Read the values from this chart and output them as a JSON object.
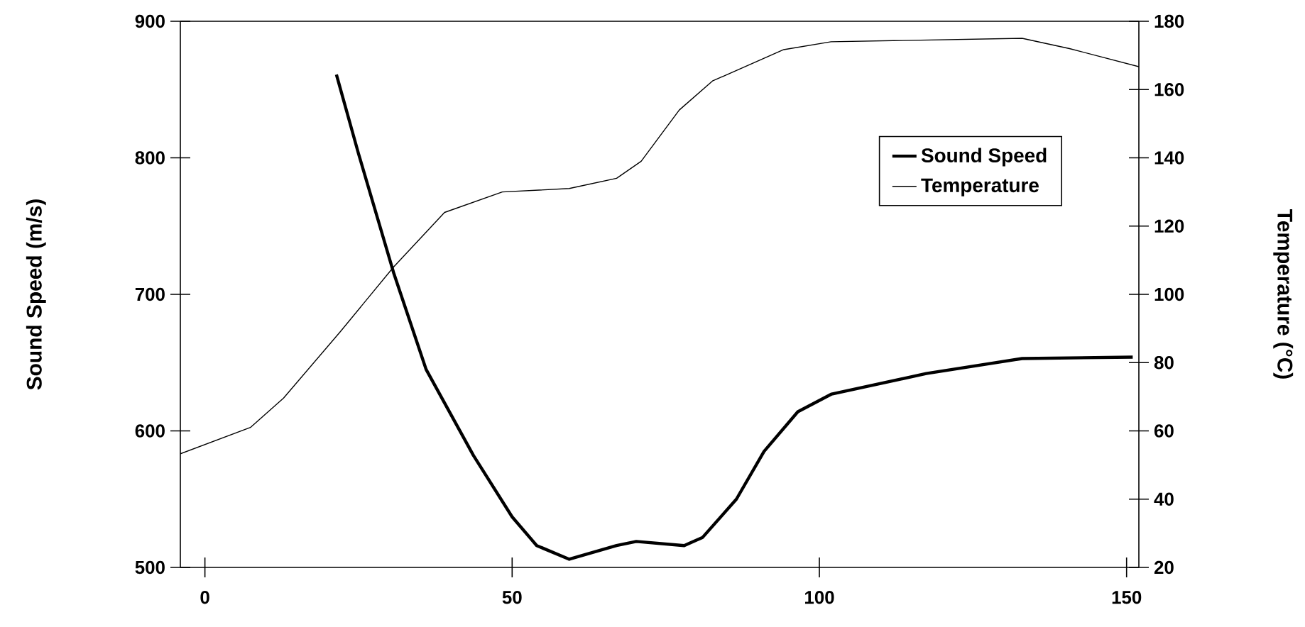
{
  "chart_data": {
    "type": "line",
    "xlim": [
      -4,
      152
    ],
    "xticks": [
      0,
      50,
      100,
      150
    ],
    "ylabel": "Sound Speed (m/s)",
    "ylim": [
      500,
      900
    ],
    "yticks": [
      500,
      600,
      700,
      800,
      900
    ],
    "y2label": "Temperature (°C)",
    "y2lim": [
      20,
      180
    ],
    "y2ticks": [
      20,
      40,
      60,
      80,
      100,
      120,
      140,
      160,
      180
    ],
    "legend": "top right",
    "grid": false,
    "series": [
      {
        "name": "Sound Speed",
        "color": "#000000",
        "x": [
          21.4,
          25,
          30.7,
          36,
          43.7,
          50,
          54,
          59.3,
          67,
          70.2,
          78,
          81,
          86.5,
          91,
          96.5,
          102,
          117.4,
          133,
          151
        ],
        "values": [
          861,
          803,
          716,
          645,
          582,
          537,
          516,
          506,
          516,
          519,
          516,
          522,
          550,
          585,
          614,
          627,
          642,
          653,
          654
        ]
      },
      {
        "name": "Temperature",
        "color": "#000000",
        "axis": "y2",
        "x": [
          -4,
          7.4,
          12.8,
          22,
          30.7,
          39,
          48.4,
          59.3,
          67,
          71,
          77.2,
          82.6,
          94.2,
          101.9,
          133,
          140.7,
          152
        ],
        "values": [
          53.3,
          61,
          69.6,
          89,
          108,
          124,
          130,
          131,
          134,
          139,
          154,
          162.5,
          171.7,
          174,
          175,
          172,
          166.7
        ]
      }
    ]
  }
}
